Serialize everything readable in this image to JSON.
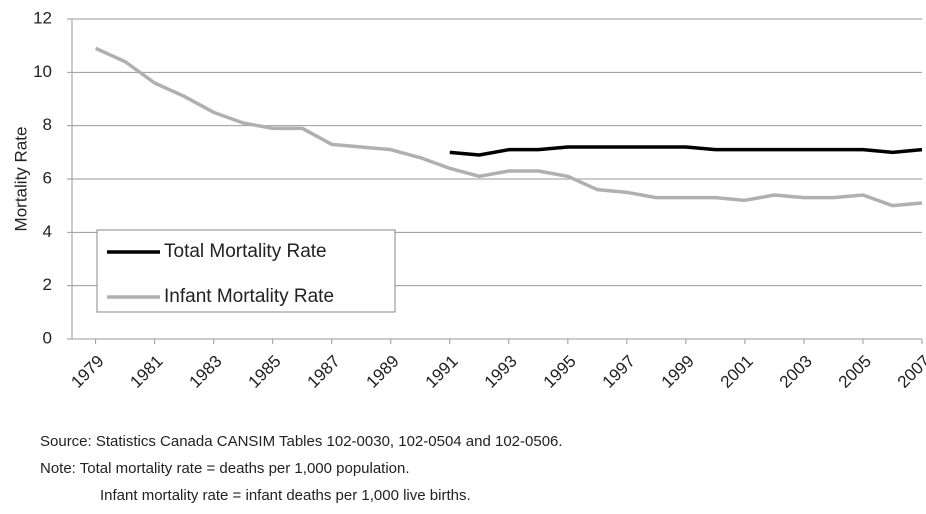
{
  "chart_data": {
    "type": "line",
    "ylabel": "Mortality Rate",
    "x": [
      1979,
      1980,
      1981,
      1982,
      1983,
      1984,
      1985,
      1986,
      1987,
      1988,
      1989,
      1990,
      1991,
      1992,
      1993,
      1994,
      1995,
      1996,
      1997,
      1998,
      1999,
      2000,
      2001,
      2002,
      2003,
      2004,
      2005,
      2006,
      2007
    ],
    "series": [
      {
        "name": "Total Mortality Rate",
        "color": "#000000",
        "values": [
          null,
          null,
          null,
          null,
          null,
          null,
          null,
          null,
          null,
          null,
          null,
          null,
          7.0,
          6.9,
          7.1,
          7.1,
          7.2,
          7.2,
          7.2,
          7.2,
          7.2,
          7.1,
          7.1,
          7.1,
          7.1,
          7.1,
          7.1,
          7.0,
          7.1
        ]
      },
      {
        "name": "Infant Mortality Rate",
        "color": "#b0b0b0",
        "values": [
          10.9,
          10.4,
          9.6,
          9.1,
          8.5,
          8.1,
          7.9,
          7.9,
          7.3,
          7.2,
          7.1,
          6.8,
          6.4,
          6.1,
          6.3,
          6.3,
          6.1,
          5.6,
          5.5,
          5.3,
          5.3,
          5.3,
          5.2,
          5.4,
          5.3,
          5.3,
          5.4,
          5.0,
          5.1
        ]
      }
    ],
    "xlim": [
      1978.2,
      2007
    ],
    "xticks": [
      1979,
      1981,
      1983,
      1985,
      1987,
      1989,
      1991,
      1993,
      1995,
      1997,
      1999,
      2001,
      2003,
      2005,
      2007
    ],
    "ylim": [
      0,
      12
    ],
    "yticks": [
      0,
      2,
      4,
      6,
      8,
      10,
      12
    ],
    "grid": true,
    "legend": "lower-left",
    "notes": [
      "Source: Statistics Canada CANSIM Tables 102-0030, 102-0504 and 102-0506.",
      "Note: Total mortality rate = deaths per 1,000 population.",
      "Infant mortality rate = infant deaths per 1,000 live births."
    ]
  }
}
